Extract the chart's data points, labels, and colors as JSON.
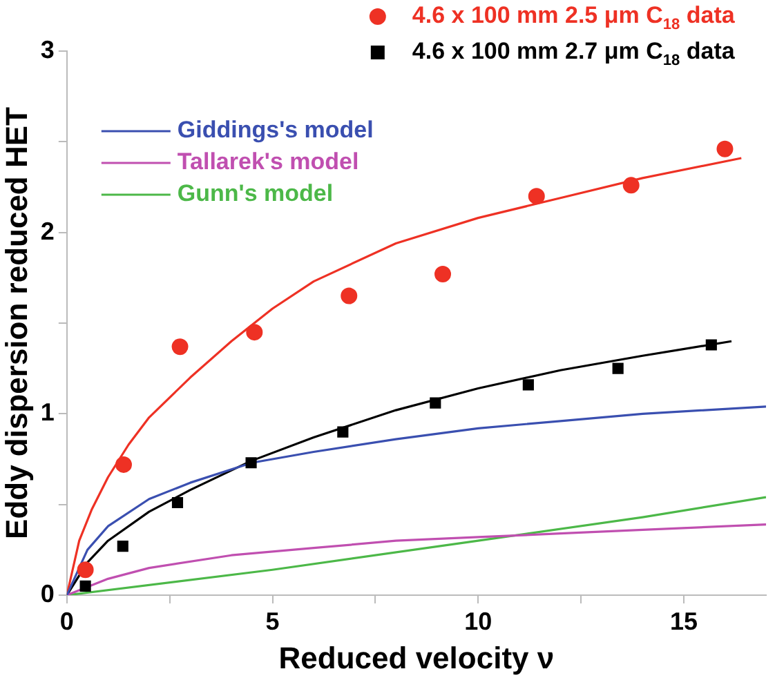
{
  "chart_data": {
    "type": "scatter",
    "xlabel": "Reduced velocity ν",
    "ylabel": "Eddy dispersion reduced HET",
    "xlim": [
      0,
      17
    ],
    "xticks": [
      0,
      {
        "value": 2.5,
        "label": null
      },
      5,
      {
        "value": 7.5,
        "label": null
      },
      10,
      {
        "value": 12.5,
        "label": null
      },
      15
    ],
    "ylim": [
      0,
      3
    ],
    "yticks": [
      0,
      {
        "value": 0.5,
        "label": null
      },
      1,
      {
        "value": 1.5,
        "label": null
      },
      2,
      {
        "value": 2.5,
        "label": null
      },
      3
    ],
    "grid": false,
    "legend": "top left",
    "series": [
      {
        "name": "4.6 x 100 mm 2.5 μm C$_{18}$ data",
        "type": "scatter",
        "marker": "circle",
        "color": "#ee3124",
        "x": [
          0.45,
          1.38,
          2.75,
          4.56,
          6.86,
          9.14,
          11.42,
          13.72,
          16.0
        ],
        "values": [
          0.14,
          0.72,
          1.37,
          1.45,
          1.65,
          1.77,
          2.2,
          2.26,
          2.46
        ]
      },
      {
        "name": "4.6 x 100 mm 2.7 μm C$_{18}$ data",
        "type": "scatter",
        "marker": "square",
        "color": "#000000",
        "x": [
          0.45,
          1.36,
          2.69,
          4.48,
          6.71,
          8.96,
          11.22,
          13.4,
          15.67
        ],
        "values": [
          0.05,
          0.27,
          0.51,
          0.73,
          0.9,
          1.06,
          1.16,
          1.25,
          1.38
        ]
      },
      {
        "name": "Giddings's model",
        "type": "line",
        "marker": "none",
        "color": "#3a4fb0",
        "x": [
          0,
          0.5,
          1,
          2,
          3,
          4.5,
          6,
          8,
          10,
          12,
          14,
          17
        ],
        "values": [
          0,
          0.25,
          0.38,
          0.53,
          0.62,
          0.73,
          0.79,
          0.86,
          0.92,
          0.96,
          1.0,
          1.04
        ]
      },
      {
        "name": "Tallarek's model",
        "type": "line",
        "marker": "none",
        "color": "#c04fb0",
        "x": [
          0,
          1,
          2,
          4,
          6,
          8,
          10,
          12,
          14,
          17
        ],
        "values": [
          0,
          0.09,
          0.15,
          0.22,
          0.26,
          0.3,
          0.32,
          0.34,
          0.36,
          0.39
        ]
      },
      {
        "name": "Gunn's model",
        "type": "line",
        "marker": "none",
        "color": "#4cb848",
        "x": [
          0,
          5,
          10,
          14,
          17
        ],
        "values": [
          0,
          0.14,
          0.3,
          0.43,
          0.54
        ]
      },
      {
        "type": "line",
        "marker": "none",
        "color": "#ee3124",
        "x": [
          0,
          0.3,
          0.6,
          1,
          1.5,
          2,
          3,
          4,
          5,
          6,
          8,
          10,
          12,
          14,
          16.4
        ],
        "values": [
          0,
          0.3,
          0.47,
          0.65,
          0.83,
          0.98,
          1.2,
          1.4,
          1.58,
          1.73,
          1.94,
          2.08,
          2.19,
          2.3,
          2.41
        ]
      },
      {
        "type": "line",
        "marker": "none",
        "color": "#000000",
        "x": [
          0,
          0.5,
          1,
          2,
          3,
          4.48,
          6,
          8,
          10,
          12,
          14,
          16.16
        ],
        "values": [
          0,
          0.18,
          0.3,
          0.46,
          0.58,
          0.74,
          0.87,
          1.02,
          1.14,
          1.24,
          1.32,
          1.4
        ]
      }
    ]
  }
}
